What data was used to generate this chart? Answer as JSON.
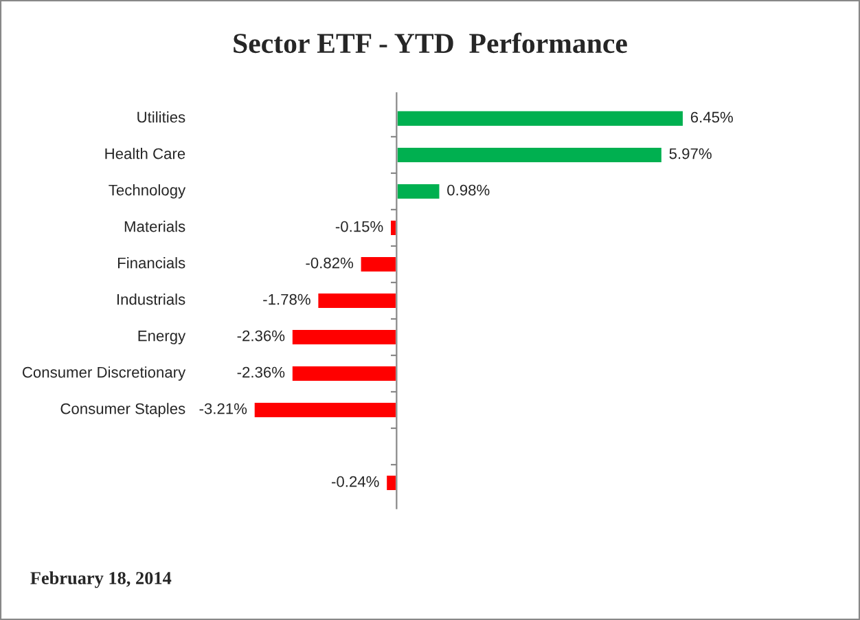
{
  "chart_data": {
    "type": "bar",
    "orientation": "horizontal",
    "title": "Sector ETF - YTD  Performance",
    "categories": [
      "Utilities",
      "Health Care",
      "Technology",
      "Materials",
      "Financials",
      "Industrials",
      "Energy",
      "Consumer Discretionary",
      "Consumer Staples",
      null,
      null
    ],
    "values": [
      6.45,
      5.97,
      0.98,
      -0.15,
      -0.82,
      -1.78,
      -2.36,
      -2.36,
      -3.21,
      null,
      -0.24
    ],
    "colors": [
      "#00b050",
      "#00b050",
      "#00b050",
      "#ff0000",
      "#ff0000",
      "#ff0000",
      "#ff0000",
      "#ff0000",
      "#ff0000",
      "#ff0000",
      "#ff0000"
    ],
    "value_labels": [
      "6.45%",
      "5.97%",
      "0.98%",
      "-0.15%",
      "-0.82%",
      "-1.78%",
      "-2.36%",
      "-2.36%",
      "-3.21%",
      null,
      "-0.24%"
    ],
    "annotations": [
      "February 18, 2014"
    ]
  }
}
